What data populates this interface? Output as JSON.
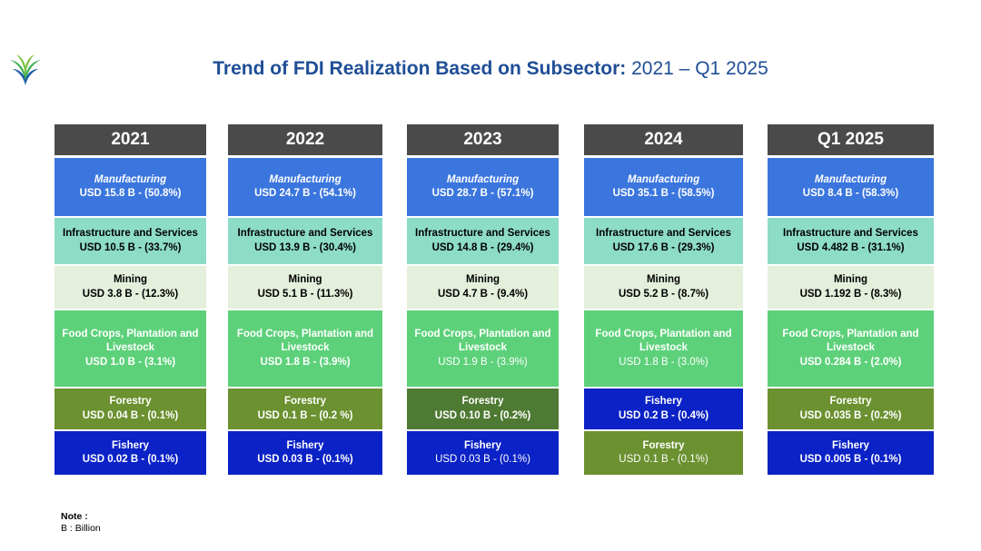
{
  "title": {
    "bold": "Trend of FDI Realization Based on Subsector:",
    "rest": " 2021 – Q1 2025"
  },
  "note": {
    "label": "Note :",
    "text": "B :  Billion"
  },
  "colors": {
    "header": "#4a4a4a",
    "manufacturing": "#3b76de",
    "infrastructure": "#8ddcc6",
    "mining": "#e4efdc",
    "food_crops": "#5dd17a",
    "forestry": "#6b9130",
    "forestry_dark": "#4e7a33",
    "fishery": "#0b22c6",
    "title": "#1f4e96"
  },
  "chart_data": {
    "type": "table",
    "title": "Trend of FDI Realization Based on Subsector: 2021 – Q1 2025",
    "unit": "USD B",
    "columns": [
      {
        "year": "2021",
        "segments": [
          {
            "sector": "Manufacturing",
            "label": "USD 15.8 B - (50.8%)",
            "value": 15.8,
            "share": 50.8,
            "color": "#3b76de"
          },
          {
            "sector": "Infrastructure and Services",
            "label": "USD 10.5 B - (33.7%)",
            "value": 10.5,
            "share": 33.7,
            "color": "#8ddcc6"
          },
          {
            "sector": "Mining",
            "label": "USD 3.8 B - (12.3%)",
            "value": 3.8,
            "share": 12.3,
            "color": "#e4efdc"
          },
          {
            "sector": "Food Crops, Plantation and Livestock",
            "label": "USD 1.0 B - (3.1%)",
            "value": 1.0,
            "share": 3.1,
            "color": "#5dd17a"
          },
          {
            "sector": "Forestry",
            "label": "USD 0.04 B - (0.1%)",
            "value": 0.04,
            "share": 0.1,
            "color": "#6b9130"
          },
          {
            "sector": "Fishery",
            "label": "USD 0.02 B - (0.1%)",
            "value": 0.02,
            "share": 0.1,
            "color": "#0b22c6"
          }
        ]
      },
      {
        "year": "2022",
        "segments": [
          {
            "sector": "Manufacturing",
            "label": "USD 24.7 B - (54.1%)",
            "value": 24.7,
            "share": 54.1,
            "color": "#3b76de"
          },
          {
            "sector": "Infrastructure and Services",
            "label": "USD 13.9 B - (30.4%)",
            "value": 13.9,
            "share": 30.4,
            "color": "#8ddcc6"
          },
          {
            "sector": "Mining",
            "label": "USD 5.1 B - (11.3%)",
            "value": 5.1,
            "share": 11.3,
            "color": "#e4efdc"
          },
          {
            "sector": "Food Crops, Plantation and Livestock",
            "label": "USD 1.8 B - (3.9%)",
            "value": 1.8,
            "share": 3.9,
            "color": "#5dd17a"
          },
          {
            "sector": "Forestry",
            "label": "USD 0.1 B – (0.2 %)",
            "value": 0.1,
            "share": 0.2,
            "color": "#6b9130"
          },
          {
            "sector": "Fishery",
            "label": "USD 0.03 B - (0.1%)",
            "value": 0.03,
            "share": 0.1,
            "color": "#0b22c6"
          }
        ]
      },
      {
        "year": "2023",
        "segments": [
          {
            "sector": "Manufacturing",
            "label": "USD 28.7 B - (57.1%)",
            "value": 28.7,
            "share": 57.1,
            "color": "#3b76de"
          },
          {
            "sector": "Infrastructure and Services",
            "label": "USD 14.8 B - (29.4%)",
            "value": 14.8,
            "share": 29.4,
            "color": "#8ddcc6"
          },
          {
            "sector": "Mining",
            "label": "USD 4.7 B - (9.4%)",
            "value": 4.7,
            "share": 9.4,
            "color": "#e4efdc"
          },
          {
            "sector": "Food Crops, Plantation and Livestock",
            "label": "USD 1.9 B - (3.9%)",
            "value": 1.9,
            "share": 3.9,
            "color": "#5dd17a"
          },
          {
            "sector": "Forestry",
            "label": "USD 0.10 B - (0.2%)",
            "value": 0.1,
            "share": 0.2,
            "color": "#4e7a33"
          },
          {
            "sector": "Fishery",
            "label": "USD 0.03 B - (0.1%)",
            "value": 0.03,
            "share": 0.1,
            "color": "#0b22c6"
          }
        ]
      },
      {
        "year": "2024",
        "segments": [
          {
            "sector": "Manufacturing",
            "label": "USD 35.1 B - (58.5%)",
            "value": 35.1,
            "share": 58.5,
            "color": "#3b76de"
          },
          {
            "sector": "Infrastructure and Services",
            "label": "USD 17.6 B - (29.3%)",
            "value": 17.6,
            "share": 29.3,
            "color": "#8ddcc6"
          },
          {
            "sector": "Mining",
            "label": "USD 5.2 B - (8.7%)",
            "value": 5.2,
            "share": 8.7,
            "color": "#e4efdc"
          },
          {
            "sector": "Food Crops, Plantation and Livestock",
            "label": "USD 1.8 B - (3.0%)",
            "value": 1.8,
            "share": 3.0,
            "color": "#5dd17a"
          },
          {
            "sector": "Fishery",
            "label": "USD 0.2 B - (0.4%)",
            "value": 0.2,
            "share": 0.4,
            "color": "#0b22c6"
          },
          {
            "sector": "Forestry",
            "label": "USD 0.1 B - (0.1%)",
            "value": 0.1,
            "share": 0.1,
            "color": "#6b9130"
          }
        ]
      },
      {
        "year": "Q1 2025",
        "segments": [
          {
            "sector": "Manufacturing",
            "label": "USD 8.4 B - (58.3%)",
            "value": 8.4,
            "share": 58.3,
            "color": "#3b76de"
          },
          {
            "sector": "Infrastructure and Services",
            "label": "USD 4.482 B - (31.1%)",
            "value": 4.482,
            "share": 31.1,
            "color": "#8ddcc6"
          },
          {
            "sector": "Mining",
            "label": "USD 1.192 B - (8.3%)",
            "value": 1.192,
            "share": 8.3,
            "color": "#e4efdc"
          },
          {
            "sector": "Food Crops, Plantation and Livestock",
            "label": "USD 0.284 B - (2.0%)",
            "value": 0.284,
            "share": 2.0,
            "color": "#5dd17a"
          },
          {
            "sector": "Forestry",
            "label": "USD 0.035 B - (0.2%)",
            "value": 0.035,
            "share": 0.2,
            "color": "#6b9130"
          },
          {
            "sector": "Fishery",
            "label": "USD 0.005 B - (0.1%)",
            "value": 0.005,
            "share": 0.1,
            "color": "#0b22c6"
          }
        ]
      }
    ]
  }
}
